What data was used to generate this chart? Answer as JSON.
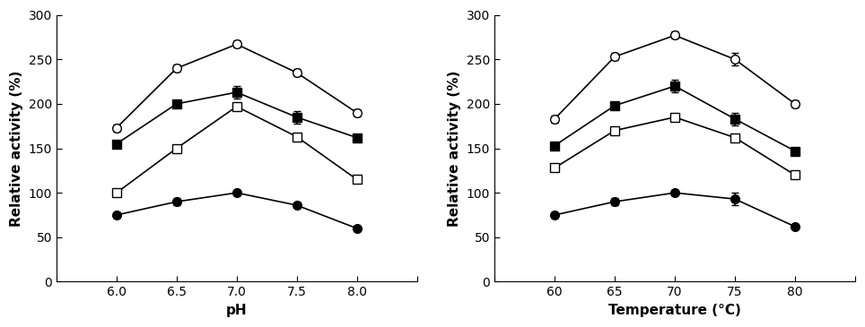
{
  "ph": {
    "x": [
      6.0,
      6.5,
      7.0,
      7.5,
      8.0
    ],
    "xlim": [
      5.5,
      8.5
    ],
    "xticks": [
      5.5,
      6.0,
      6.5,
      7.0,
      7.5,
      8.0,
      8.5
    ],
    "xticklabels": [
      "",
      "6.0",
      "6.5",
      "7.0",
      "7.5",
      "8.0",
      ""
    ],
    "xlabel": "pH",
    "ylabel": "Relative activity (%)",
    "ylim": [
      0,
      300
    ],
    "yticks": [
      0,
      50,
      100,
      150,
      200,
      250,
      300
    ],
    "yticklabels": [
      "0",
      "50",
      "100",
      "150",
      "200",
      "250",
      "300"
    ],
    "series": [
      {
        "y": [
          173,
          240,
          267,
          235,
          190
        ],
        "yerr": [
          4,
          4,
          4,
          4,
          4
        ],
        "marker": "o",
        "mfc": "white",
        "mec": "black",
        "color": "black"
      },
      {
        "y": [
          155,
          200,
          213,
          185,
          162
        ],
        "yerr": [
          4,
          4,
          7,
          7,
          4
        ],
        "marker": "s",
        "mfc": "black",
        "mec": "black",
        "color": "black"
      },
      {
        "y": [
          100,
          150,
          197,
          163,
          115
        ],
        "yerr": [
          4,
          4,
          4,
          4,
          4
        ],
        "marker": "s",
        "mfc": "white",
        "mec": "black",
        "color": "black"
      },
      {
        "y": [
          75,
          90,
          100,
          86,
          60
        ],
        "yerr": [
          3,
          4,
          3,
          3,
          3
        ],
        "marker": "o",
        "mfc": "black",
        "mec": "black",
        "color": "black"
      }
    ]
  },
  "temp": {
    "x": [
      60,
      65,
      70,
      75,
      80
    ],
    "xlim": [
      55,
      85
    ],
    "xticks": [
      55,
      60,
      65,
      70,
      75,
      80,
      85
    ],
    "xticklabels": [
      "",
      "60",
      "65",
      "70",
      "75",
      "80",
      ""
    ],
    "xlabel": "Temperature (°C)",
    "ylabel": "Relative activity (%)",
    "ylim": [
      0,
      300
    ],
    "yticks": [
      0,
      50,
      100,
      150,
      200,
      250,
      300
    ],
    "yticklabels": [
      "0",
      "50",
      "100",
      "150",
      "200",
      "250",
      "300"
    ],
    "series": [
      {
        "y": [
          183,
          253,
          277,
          250,
          200
        ],
        "yerr": [
          4,
          4,
          4,
          7,
          4
        ],
        "marker": "o",
        "mfc": "white",
        "mec": "black",
        "color": "black"
      },
      {
        "y": [
          153,
          198,
          220,
          183,
          147
        ],
        "yerr": [
          4,
          4,
          7,
          7,
          4
        ],
        "marker": "s",
        "mfc": "black",
        "mec": "black",
        "color": "black"
      },
      {
        "y": [
          128,
          170,
          185,
          162,
          120
        ],
        "yerr": [
          4,
          4,
          4,
          4,
          4
        ],
        "marker": "s",
        "mfc": "white",
        "mec": "black",
        "color": "black"
      },
      {
        "y": [
          75,
          90,
          100,
          93,
          62
        ],
        "yerr": [
          3,
          4,
          3,
          7,
          3
        ],
        "marker": "o",
        "mfc": "black",
        "mec": "black",
        "color": "black"
      }
    ]
  },
  "markersize": 7,
  "linewidth": 1.2,
  "capsize": 3,
  "elinewidth": 1.2,
  "label_fontsize": 11,
  "tick_fontsize": 10,
  "label_fontweight": "bold"
}
